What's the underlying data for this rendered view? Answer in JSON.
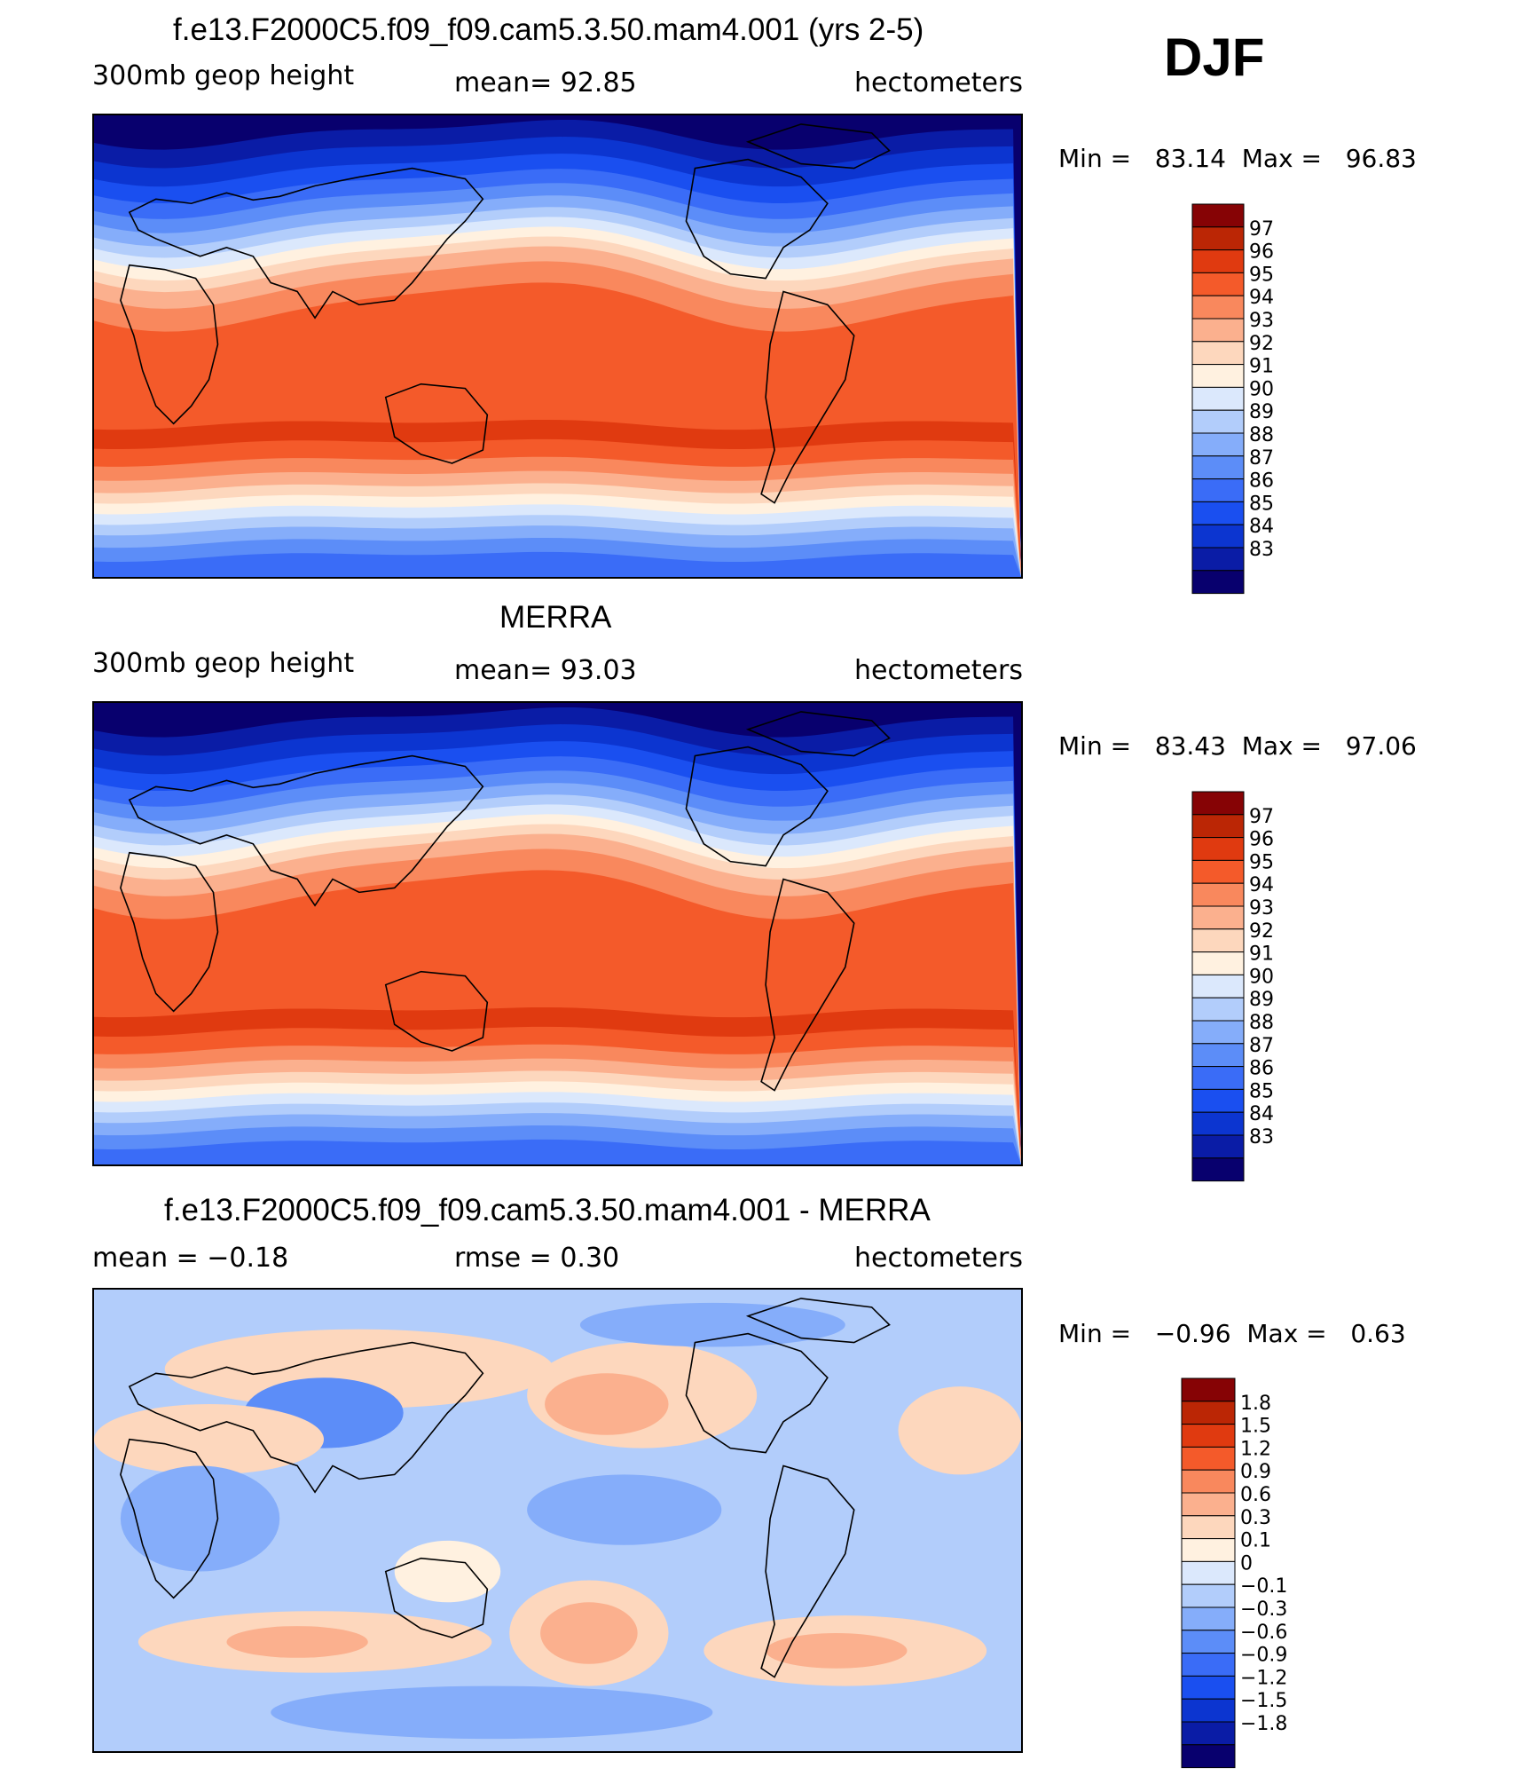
{
  "season": "DJF",
  "units": "hectometers",
  "colors": {
    "abs": [
      "#08006e",
      "#0a1ca6",
      "#0c35d0",
      "#1a4ff0",
      "#3a6cf7",
      "#5c8df8",
      "#85adfa",
      "#b2cdfb",
      "#dbe8fc",
      "#fff1e0",
      "#fdd7bd",
      "#fbb08e",
      "#f9885d",
      "#f45a2a",
      "#e03a10",
      "#bb2605",
      "#860305"
    ],
    "diff": [
      "#08006e",
      "#0a1ca6",
      "#0c35d0",
      "#1a4ff0",
      "#3a6cf7",
      "#5c8df8",
      "#85adfa",
      "#b2cdfb",
      "#dbe8fc",
      "#fff1e0",
      "#fdd7bd",
      "#fbb08e",
      "#f9885d",
      "#f45a2a",
      "#e03a10",
      "#bb2605",
      "#860305"
    ]
  },
  "panels": [
    {
      "id": "model",
      "title": "f.e13.F2000C5.f09_f09.cam5.3.50.mam4.001 (yrs 2-5)",
      "variable": "300mb geop height",
      "stat_left": "",
      "stat_mid": "mean=   92.85",
      "units": "hectometers",
      "min_label": "Min =",
      "min": "83.14",
      "max_label": "Max =",
      "max": "96.83",
      "colorbar_labels": [
        "97",
        "96",
        "95",
        "94",
        "93",
        "92",
        "91",
        "90",
        "89",
        "88",
        "87",
        "86",
        "85",
        "84",
        "83"
      ]
    },
    {
      "id": "obs",
      "title": "MERRA",
      "variable": "300mb geop height",
      "stat_left": "",
      "stat_mid": "mean=   93.03",
      "units": "hectometers",
      "min_label": "Min =",
      "min": "83.43",
      "max_label": "Max =",
      "max": "97.06",
      "colorbar_labels": [
        "97",
        "96",
        "95",
        "94",
        "93",
        "92",
        "91",
        "90",
        "89",
        "88",
        "87",
        "86",
        "85",
        "84",
        "83"
      ]
    },
    {
      "id": "diff",
      "title": "f.e13.F2000C5.f09_f09.cam5.3.50.mam4.001 - MERRA",
      "variable": "",
      "stat_left": "mean =   −0.18",
      "stat_mid": "rmse =    0.30",
      "units": "hectometers",
      "min_label": "Min =",
      "min": "−0.96",
      "max_label": "Max =",
      "max": "0.63",
      "colorbar_labels": [
        "1.8",
        "1.5",
        "1.2",
        "0.9",
        "0.6",
        "0.3",
        "0.1",
        "0",
        "−0.1",
        "−0.3",
        "−0.6",
        "−0.9",
        "−1.2",
        "−1.5",
        "−1.8"
      ]
    }
  ]
}
